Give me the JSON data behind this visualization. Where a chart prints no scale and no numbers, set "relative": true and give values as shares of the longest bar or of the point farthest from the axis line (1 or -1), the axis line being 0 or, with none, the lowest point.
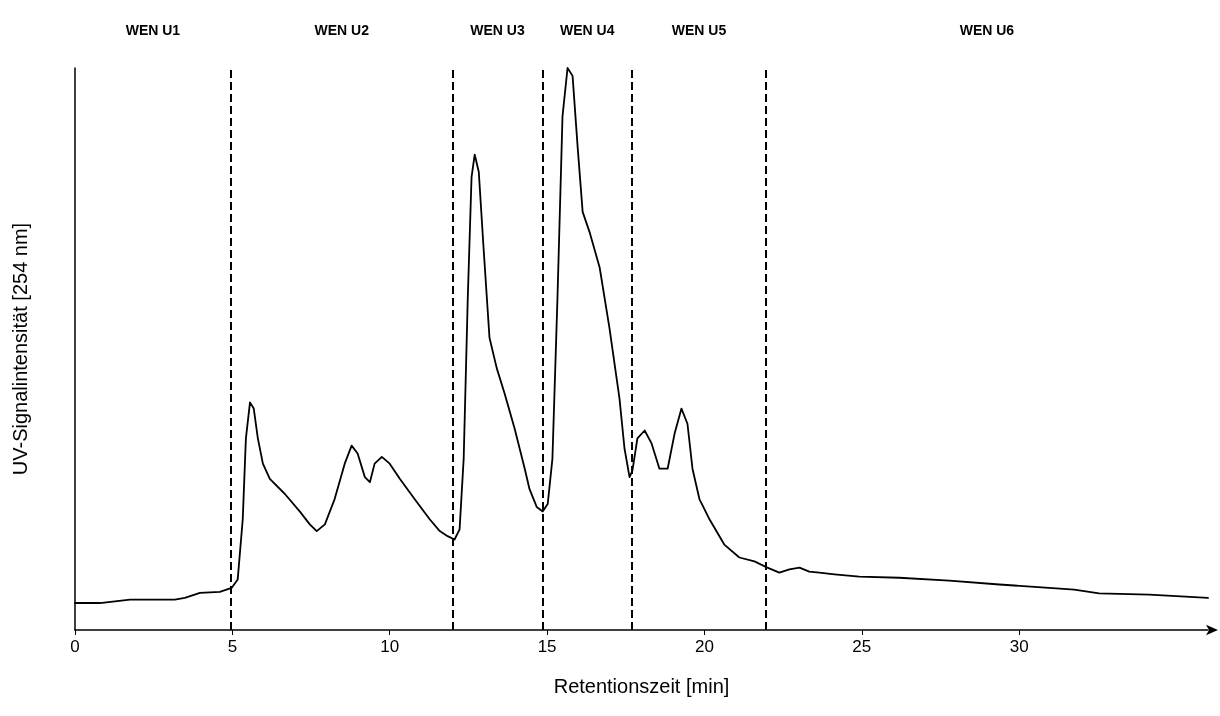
{
  "chart_data": {
    "type": "line",
    "xlabel": "Retentionszeit [min]",
    "ylabel": "UV-Signalintensität [254 nm]",
    "relative": true,
    "xlim": [
      0,
      36
    ],
    "xticks": [
      0,
      5,
      10,
      15,
      20,
      25,
      30
    ],
    "grid": false,
    "marker": "none",
    "line_style": "solid",
    "series": [
      {
        "color": "#000000",
        "x": [
          0,
          0.79,
          1.75,
          3.17,
          3.49,
          3.97,
          4.6,
          4.98,
          5.17,
          5.33,
          5.43,
          5.56,
          5.68,
          5.81,
          5.97,
          6.19,
          6.67,
          7.14,
          7.46,
          7.68,
          7.94,
          8.25,
          8.57,
          8.79,
          8.98,
          9.21,
          9.37,
          9.52,
          9.75,
          10,
          10.32,
          10.79,
          11.27,
          11.59,
          11.84,
          12.06,
          12.22,
          12.35,
          12.48,
          12.6,
          12.7,
          12.83,
          12.98,
          13.17,
          13.4,
          13.65,
          13.97,
          14.29,
          14.44,
          14.67,
          14.86,
          15.02,
          15.17,
          15.33,
          15.49,
          15.65,
          15.81,
          15.97,
          16.13,
          16.35,
          16.67,
          16.98,
          17.3,
          17.46,
          17.62,
          17.71,
          17.87,
          18.1,
          18.32,
          18.57,
          18.83,
          19.05,
          19.27,
          19.46,
          19.62,
          19.84,
          20.16,
          20.63,
          21.11,
          21.59,
          22,
          22.38,
          22.7,
          23.02,
          23.33,
          23.65,
          24.13,
          24.92,
          26.19,
          27.78,
          29.37,
          30.95,
          31.75,
          32.54,
          34.13,
          36
        ],
        "values": [
          0.048,
          0.048,
          0.054,
          0.054,
          0.057,
          0.066,
          0.068,
          0.075,
          0.09,
          0.197,
          0.341,
          0.405,
          0.394,
          0.341,
          0.296,
          0.269,
          0.242,
          0.211,
          0.188,
          0.176,
          0.188,
          0.233,
          0.296,
          0.328,
          0.314,
          0.272,
          0.263,
          0.296,
          0.308,
          0.296,
          0.269,
          0.233,
          0.197,
          0.176,
          0.167,
          0.161,
          0.179,
          0.305,
          0.591,
          0.806,
          0.846,
          0.815,
          0.681,
          0.52,
          0.466,
          0.421,
          0.358,
          0.287,
          0.251,
          0.219,
          0.211,
          0.224,
          0.305,
          0.591,
          0.914,
          1,
          0.986,
          0.86,
          0.744,
          0.708,
          0.645,
          0.538,
          0.412,
          0.323,
          0.272,
          0.283,
          0.341,
          0.355,
          0.332,
          0.287,
          0.287,
          0.349,
          0.394,
          0.367,
          0.287,
          0.233,
          0.197,
          0.152,
          0.129,
          0.122,
          0.111,
          0.102,
          0.108,
          0.111,
          0.104,
          0.102,
          0.099,
          0.095,
          0.093,
          0.088,
          0.081,
          0.075,
          0.072,
          0.065,
          0.063,
          0.057
        ]
      }
    ],
    "ref_lines": [
      {
        "axis": "x",
        "value": 4.95,
        "line_style": "dashed"
      },
      {
        "axis": "x",
        "value": 12.0,
        "line_style": "dashed"
      },
      {
        "axis": "x",
        "value": 14.85,
        "line_style": "dashed"
      },
      {
        "axis": "x",
        "value": 17.7,
        "line_style": "dashed"
      },
      {
        "axis": "x",
        "value": 21.95,
        "line_style": "dashed"
      }
    ],
    "annotations": [
      "WEN U1",
      "WEN U2",
      "WEN U3",
      "WEN U4",
      "WEN U5",
      "WEN U6"
    ]
  }
}
